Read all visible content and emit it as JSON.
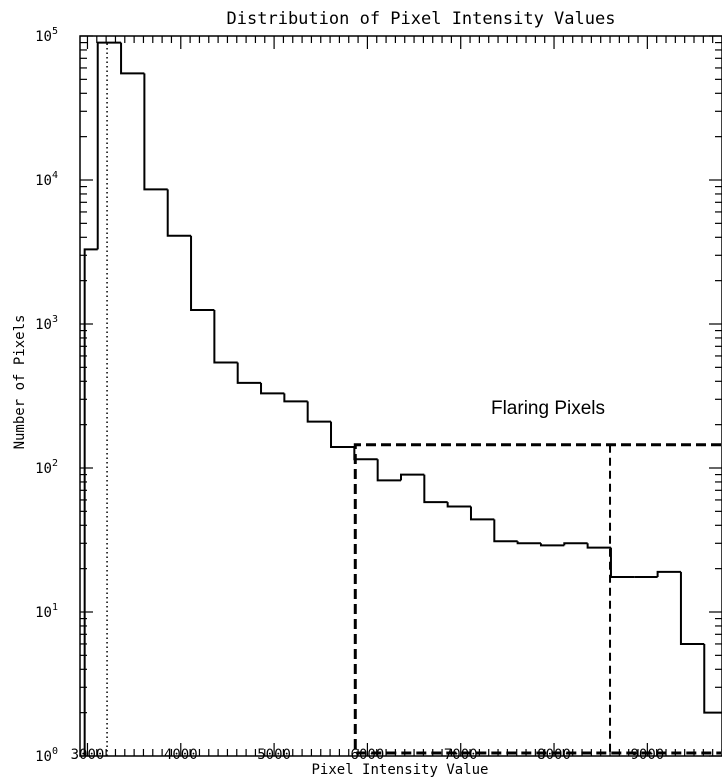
{
  "chart_data": {
    "type": "histogram",
    "title": "Distribution of Pixel Intensity Values",
    "xlabel": "Pixel Intensity Value",
    "ylabel": "Number of Pixels",
    "xlim": [
      2920,
      9800
    ],
    "ylim": [
      1,
      100000
    ],
    "yscale": "log",
    "xticks": [
      3000,
      4000,
      5000,
      6000,
      7000,
      8000,
      9000
    ],
    "xtick_labels": [
      "3000",
      "4000",
      "5000",
      "6000",
      "7000",
      "8000",
      "9000"
    ],
    "yticks": [
      {
        "value": 1,
        "base": "10",
        "exp": "0"
      },
      {
        "value": 10,
        "base": "10",
        "exp": "1"
      },
      {
        "value": 100,
        "base": "10",
        "exp": "2"
      },
      {
        "value": 1000,
        "base": "10",
        "exp": "3"
      },
      {
        "value": 10000,
        "base": "10",
        "exp": "4"
      },
      {
        "value": 100000,
        "base": "10",
        "exp": "5"
      }
    ],
    "bin_width": 250,
    "bin_starts": [
      2970,
      3110,
      3360,
      3610,
      3860,
      4110,
      4360,
      4610,
      4860,
      5110,
      5360,
      5610,
      5860,
      6110,
      6360,
      6610,
      6860,
      7110,
      7360,
      7610,
      7860,
      8110,
      8360,
      8610,
      8860,
      9110,
      9360,
      9610
    ],
    "bin_ends": [
      3110,
      3360,
      3610,
      3860,
      4110,
      4360,
      4610,
      4860,
      5110,
      5360,
      5610,
      5860,
      6110,
      6360,
      6610,
      6860,
      7110,
      7360,
      7610,
      7860,
      8110,
      8360,
      8610,
      8860,
      9110,
      9360,
      9610,
      9800
    ],
    "counts": [
      3300,
      90000,
      55000,
      8600,
      4100,
      1250,
      540,
      390,
      330,
      290,
      210,
      140,
      115,
      82,
      90,
      58,
      54,
      44,
      31,
      30,
      29,
      30,
      28,
      17.5,
      17.5,
      19,
      6,
      2
    ],
    "threshold_line_x": 3210,
    "region_box": {
      "x_start": 5870,
      "x_end": 9800,
      "y_top": 145,
      "divider_x": 8600
    },
    "annotation": "Flaring Pixels",
    "grid": false,
    "legend": "none"
  }
}
